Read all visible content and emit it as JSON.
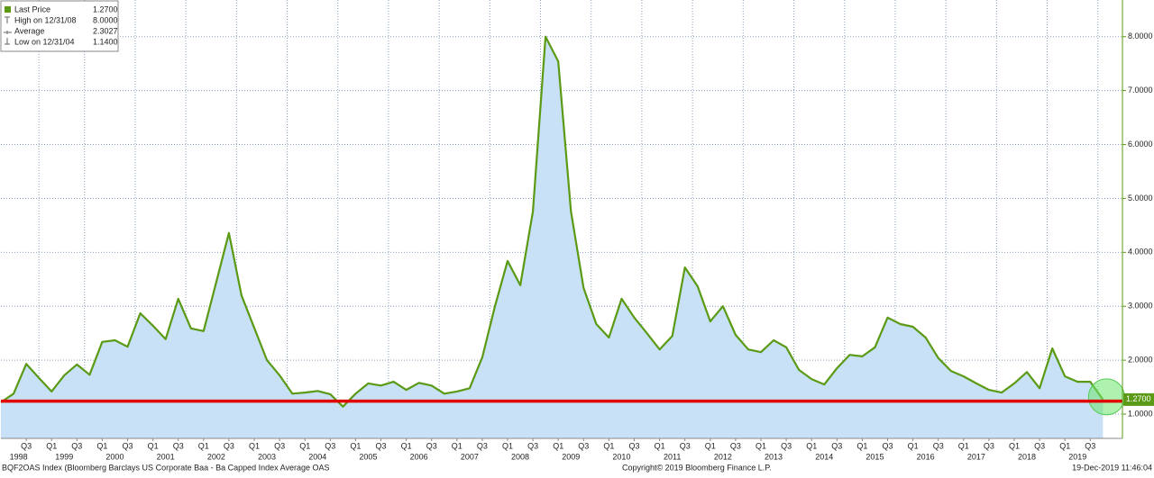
{
  "chart_data": {
    "type": "line",
    "series": [
      {
        "name": "Last Price",
        "color": "#5a9a14",
        "fill": "#c8e1f7",
        "values": [
          1.22,
          1.38,
          1.93,
          1.67,
          1.42,
          1.72,
          1.92,
          1.73,
          2.34,
          2.37,
          2.25,
          2.87,
          2.64,
          2.39,
          3.14,
          2.59,
          2.54,
          3.45,
          4.36,
          3.2,
          2.6,
          2.0,
          1.72,
          1.38,
          1.4,
          1.43,
          1.37,
          1.14,
          1.38,
          1.57,
          1.53,
          1.6,
          1.45,
          1.58,
          1.53,
          1.38,
          1.42,
          1.48,
          2.05,
          3.0,
          3.84,
          3.39,
          4.76,
          8.0,
          7.54,
          4.76,
          3.34,
          2.67,
          2.42,
          3.14,
          2.79,
          2.5,
          2.2,
          2.45,
          3.72,
          3.37,
          2.72,
          3.0,
          2.47,
          2.2,
          2.15,
          2.37,
          2.24,
          1.82,
          1.65,
          1.55,
          1.85,
          2.1,
          2.07,
          2.24,
          2.79,
          2.67,
          2.62,
          2.42,
          2.04,
          1.8,
          1.7,
          1.57,
          1.45,
          1.4,
          1.57,
          1.78,
          1.48,
          2.22,
          1.7,
          1.6,
          1.6,
          1.27
        ]
      }
    ],
    "x": [
      "1998 Q1",
      "1998 Q2",
      "1998 Q3",
      "1998 Q4",
      "1999 Q1",
      "1999 Q2",
      "1999 Q3",
      "1999 Q4",
      "2000 Q1",
      "2000 Q2",
      "2000 Q3",
      "2000 Q4",
      "2001 Q1",
      "2001 Q2",
      "2001 Q3",
      "2001 Q4",
      "2002 Q1",
      "2002 Q2",
      "2002 Q3",
      "2002 Q4",
      "2003 Q1",
      "2003 Q2",
      "2003 Q3",
      "2003 Q4",
      "2004 Q1",
      "2004 Q2",
      "2004 Q3",
      "2004 Q4",
      "2005 Q1",
      "2005 Q2",
      "2005 Q3",
      "2005 Q4",
      "2006 Q1",
      "2006 Q2",
      "2006 Q3",
      "2006 Q4",
      "2007 Q1",
      "2007 Q2",
      "2007 Q3",
      "2007 Q4",
      "2008 Q1",
      "2008 Q2",
      "2008 Q3",
      "2008 Q4",
      "2009 Q1",
      "2009 Q2",
      "2009 Q3",
      "2009 Q4",
      "2010 Q1",
      "2010 Q2",
      "2010 Q3",
      "2010 Q4",
      "2011 Q1",
      "2011 Q2",
      "2011 Q3",
      "2011 Q4",
      "2012 Q1",
      "2012 Q2",
      "2012 Q3",
      "2012 Q4",
      "2013 Q1",
      "2013 Q2",
      "2013 Q3",
      "2013 Q4",
      "2014 Q1",
      "2014 Q2",
      "2014 Q3",
      "2014 Q4",
      "2015 Q1",
      "2015 Q2",
      "2015 Q3",
      "2015 Q4",
      "2016 Q1",
      "2016 Q2",
      "2016 Q3",
      "2016 Q4",
      "2017 Q1",
      "2017 Q2",
      "2017 Q3",
      "2017 Q4",
      "2018 Q1",
      "2018 Q2",
      "2018 Q3",
      "2018 Q4",
      "2019 Q1",
      "2019 Q2",
      "2019 Q3",
      "2019 Q4"
    ],
    "xticks": [
      {
        "value": 2,
        "label": "Q3"
      },
      {
        "value": 4,
        "label": "Q1"
      },
      {
        "value": 6,
        "label": "Q3"
      },
      {
        "value": 8,
        "label": "Q1"
      },
      {
        "value": 10,
        "label": "Q3"
      },
      {
        "value": 12,
        "label": "Q1"
      },
      {
        "value": 14,
        "label": "Q3"
      },
      {
        "value": 16,
        "label": "Q1"
      },
      {
        "value": 18,
        "label": "Q3"
      },
      {
        "value": 20,
        "label": "Q1"
      },
      {
        "value": 22,
        "label": "Q3"
      },
      {
        "value": 24,
        "label": "Q1"
      },
      {
        "value": 26,
        "label": "Q3"
      },
      {
        "value": 28,
        "label": "Q1"
      },
      {
        "value": 30,
        "label": "Q3"
      },
      {
        "value": 32,
        "label": "Q1"
      },
      {
        "value": 34,
        "label": "Q3"
      },
      {
        "value": 36,
        "label": "Q1"
      },
      {
        "value": 38,
        "label": "Q3"
      },
      {
        "value": 40,
        "label": "Q1"
      },
      {
        "value": 42,
        "label": "Q3"
      },
      {
        "value": 44,
        "label": "Q1"
      },
      {
        "value": 46,
        "label": "Q3"
      },
      {
        "value": 48,
        "label": "Q1"
      },
      {
        "value": 50,
        "label": "Q3"
      },
      {
        "value": 52,
        "label": "Q1"
      },
      {
        "value": 54,
        "label": "Q3"
      },
      {
        "value": 56,
        "label": "Q1"
      },
      {
        "value": 58,
        "label": "Q3"
      },
      {
        "value": 60,
        "label": "Q1"
      },
      {
        "value": 62,
        "label": "Q3"
      },
      {
        "value": 64,
        "label": "Q1"
      },
      {
        "value": 66,
        "label": "Q3"
      },
      {
        "value": 68,
        "label": "Q1"
      },
      {
        "value": 70,
        "label": "Q3"
      },
      {
        "value": 72,
        "label": "Q1"
      },
      {
        "value": 74,
        "label": "Q3"
      },
      {
        "value": 76,
        "label": "Q1"
      },
      {
        "value": 78,
        "label": "Q3"
      },
      {
        "value": 80,
        "label": "Q1"
      },
      {
        "value": 82,
        "label": "Q3"
      },
      {
        "value": 84,
        "label": "Q1"
      },
      {
        "value": 86,
        "label": "Q3"
      }
    ],
    "year_ticks": [
      {
        "value": 1.4,
        "label": "1998"
      },
      {
        "value": 5,
        "label": "1999"
      },
      {
        "value": 9,
        "label": "2000"
      },
      {
        "value": 13,
        "label": "2001"
      },
      {
        "value": 17,
        "label": "2002"
      },
      {
        "value": 21,
        "label": "2003"
      },
      {
        "value": 25,
        "label": "2004"
      },
      {
        "value": 29,
        "label": "2005"
      },
      {
        "value": 33,
        "label": "2006"
      },
      {
        "value": 37,
        "label": "2007"
      },
      {
        "value": 41,
        "label": "2008"
      },
      {
        "value": 45,
        "label": "2009"
      },
      {
        "value": 49,
        "label": "2010"
      },
      {
        "value": 53,
        "label": "2011"
      },
      {
        "value": 57,
        "label": "2012"
      },
      {
        "value": 61,
        "label": "2013"
      },
      {
        "value": 65,
        "label": "2014"
      },
      {
        "value": 69,
        "label": "2015"
      },
      {
        "value": 73,
        "label": "2016"
      },
      {
        "value": 77,
        "label": "2017"
      },
      {
        "value": 81,
        "label": "2018"
      },
      {
        "value": 85,
        "label": "2019"
      }
    ],
    "ylim": [
      0.55,
      8.68
    ],
    "yticks": [
      {
        "value": 1,
        "label": "1.0000"
      },
      {
        "value": 2,
        "label": "2.0000"
      },
      {
        "value": 3,
        "label": "3.0000"
      },
      {
        "value": 4,
        "label": "4.0000"
      },
      {
        "value": 5,
        "label": "5.0000"
      },
      {
        "value": 6,
        "label": "6.0000"
      },
      {
        "value": 7,
        "label": "7.0000"
      },
      {
        "value": 8,
        "label": "8.0000"
      }
    ],
    "grid": true,
    "reference_line": {
      "value": 1.24,
      "color": "#e00000"
    },
    "last_value_label": "1.2700",
    "legend": [
      {
        "label": "Last Price",
        "value": 1.27,
        "value_label": "1.2700"
      },
      {
        "label": "High on 12/31/08",
        "value": 8,
        "value_label": "8.0000"
      },
      {
        "label": "Average",
        "value": 2.3027,
        "value_label": "2.3027"
      },
      {
        "label": "Low on 12/31/04",
        "value": 1.14,
        "value_label": "1.1400"
      }
    ],
    "footer": {
      "source": "BQF2OAS Index (Bloomberg Barclays US Corporate Baa - Ba Capped Index Average OAS",
      "copyright": "Copyright© 2019 Bloomberg Finance L.P.",
      "timestamp": "19-Dec-2019 11:46:04"
    }
  }
}
